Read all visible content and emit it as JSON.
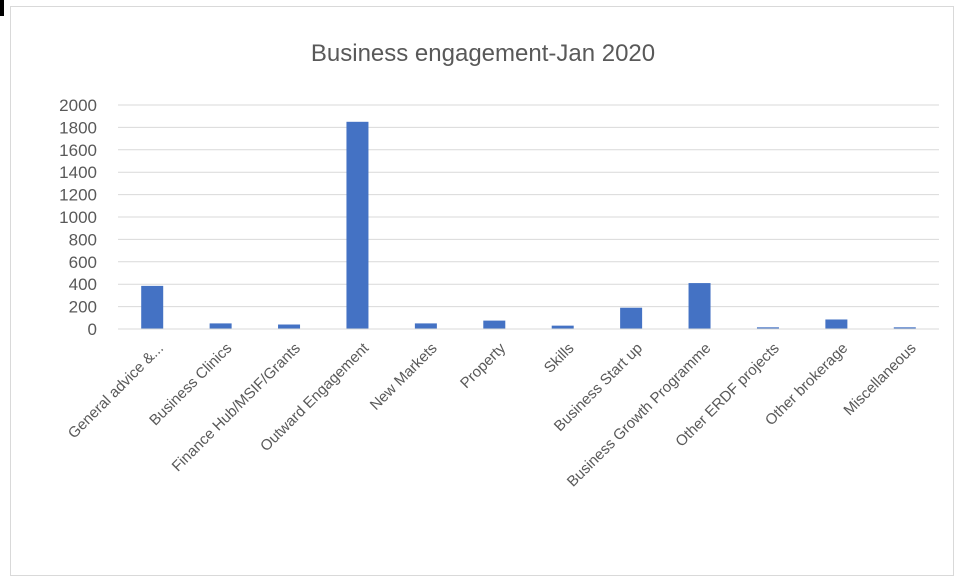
{
  "chart_data": {
    "type": "bar",
    "title": "Business engagement-Jan 2020",
    "xlabel": "",
    "ylabel": "",
    "ylim": [
      0,
      2000
    ],
    "yticks": [
      0,
      200,
      400,
      600,
      800,
      1000,
      1200,
      1400,
      1600,
      1800,
      2000
    ],
    "grid": true,
    "legend": "none",
    "bar_color": "#4472c4",
    "categories": [
      "General advice &...",
      "Business Clinics",
      "Finance Hub/MSIF/Grants",
      "Outward Engagement",
      "New Markets",
      "Property",
      "Skills",
      "Business Start up",
      "Business Growth Programme",
      "Other ERDF projects",
      "Other brokerage",
      "Miscellaneous"
    ],
    "values": [
      385,
      50,
      40,
      1850,
      50,
      75,
      30,
      190,
      410,
      15,
      85,
      15
    ]
  }
}
